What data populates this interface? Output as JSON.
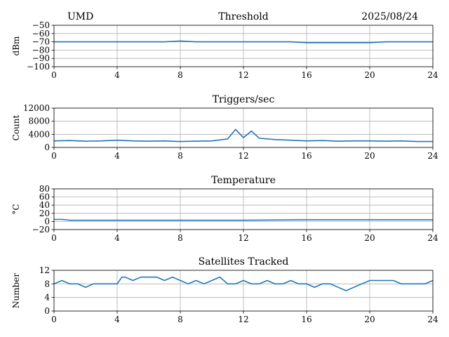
{
  "header": {
    "station": "UMD",
    "date": "2025/08/24"
  },
  "line_color": "#1f77b4",
  "chart_data": [
    {
      "type": "line",
      "title": "Threshold",
      "ylabel": "dBm",
      "xlim": [
        0,
        24
      ],
      "ylim": [
        -100,
        -50
      ],
      "xticks": [
        0,
        4,
        8,
        12,
        16,
        20,
        24
      ],
      "yticks": [
        -100,
        -90,
        -80,
        -70,
        -60,
        -50
      ],
      "ytick_labels": [
        "−100",
        "−90",
        "−80",
        "−70",
        "−60",
        "−50"
      ],
      "grid": true,
      "series": [
        {
          "x": [
            0,
            1,
            2,
            3,
            4,
            5,
            6,
            7,
            8,
            9,
            10,
            11,
            12,
            13,
            14,
            15,
            16,
            17,
            18,
            19,
            20,
            21,
            22,
            23,
            24
          ],
          "values": [
            -70,
            -70,
            -70,
            -70,
            -70,
            -70,
            -70,
            -70,
            -69,
            -70,
            -70,
            -70,
            -70,
            -70,
            -70,
            -70,
            -71,
            -71,
            -71,
            -71,
            -71,
            -70,
            -70,
            -70,
            -70
          ]
        }
      ]
    },
    {
      "type": "line",
      "title": "Triggers/sec",
      "ylabel": "Count",
      "xlim": [
        0,
        24
      ],
      "ylim": [
        0,
        12000
      ],
      "xticks": [
        0,
        4,
        8,
        12,
        16,
        20,
        24
      ],
      "yticks": [
        0,
        4000,
        8000,
        12000
      ],
      "ytick_labels": [
        "0",
        "4000",
        "8000",
        "12000"
      ],
      "grid": true,
      "series": [
        {
          "x": [
            0,
            1,
            2,
            3,
            4,
            5,
            6,
            7,
            8,
            9,
            10,
            11,
            11.5,
            12,
            12.5,
            13,
            14,
            15,
            16,
            17,
            18,
            19,
            20,
            21,
            22,
            23,
            24
          ],
          "values": [
            2000,
            2100,
            1900,
            2000,
            2200,
            2000,
            1900,
            2000,
            1800,
            1900,
            2000,
            2600,
            5500,
            3000,
            5000,
            2800,
            2400,
            2200,
            2000,
            2100,
            1900,
            2000,
            2000,
            1900,
            2000,
            1800,
            1800
          ]
        }
      ]
    },
    {
      "type": "line",
      "title": "Temperature",
      "ylabel": "°C",
      "xlim": [
        0,
        24
      ],
      "ylim": [
        -20,
        80
      ],
      "xticks": [
        0,
        4,
        8,
        12,
        16,
        20,
        24
      ],
      "yticks": [
        -20,
        0,
        20,
        40,
        60,
        80
      ],
      "ytick_labels": [
        "−20",
        "0",
        "20",
        "40",
        "60",
        "80"
      ],
      "grid": true,
      "series": [
        {
          "x": [
            0,
            0.5,
            1,
            4,
            8,
            12,
            16,
            20,
            24
          ],
          "values": [
            5,
            5,
            3,
            3,
            3,
            3,
            4,
            4,
            4
          ]
        }
      ]
    },
    {
      "type": "line",
      "title": "Satellites Tracked",
      "ylabel": "Number",
      "xlim": [
        0,
        24
      ],
      "ylim": [
        0,
        12
      ],
      "xticks": [
        0,
        4,
        8,
        12,
        16,
        20,
        24
      ],
      "yticks": [
        0,
        4,
        8,
        12
      ],
      "ytick_labels": [
        "0",
        "4",
        "8",
        "12"
      ],
      "grid": true,
      "series": [
        {
          "x": [
            0,
            0.5,
            1,
            1.5,
            2,
            2.5,
            3,
            3.5,
            4,
            4.3,
            4.5,
            5,
            5.5,
            6,
            6.5,
            7,
            7.5,
            8,
            8.5,
            9,
            9.5,
            10,
            10.5,
            11,
            11.5,
            12,
            12.5,
            13,
            13.5,
            14,
            14.5,
            15,
            15.5,
            16,
            16.5,
            17,
            17.5,
            18,
            18.5,
            19,
            19.5,
            20,
            20.5,
            21,
            21.5,
            22,
            22.5,
            23,
            23.5,
            24
          ],
          "values": [
            8,
            9,
            8,
            8,
            7,
            8,
            8,
            8,
            8,
            10,
            10,
            9,
            10,
            10,
            10,
            9,
            10,
            9,
            8,
            9,
            8,
            9,
            10,
            8,
            8,
            9,
            8,
            8,
            9,
            8,
            8,
            9,
            8,
            8,
            7,
            8,
            8,
            7,
            6,
            7,
            8,
            9,
            9,
            9,
            9,
            8,
            8,
            8,
            8,
            9
          ]
        }
      ]
    }
  ]
}
